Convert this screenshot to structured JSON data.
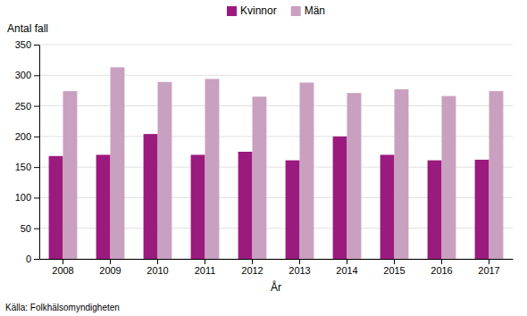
{
  "chart_data": {
    "type": "bar",
    "xlabel": "År",
    "ylabel": "Antal fall",
    "annotations": [
      "Källa: Folkhälsomyndigheten"
    ],
    "categories": [
      "2008",
      "2009",
      "2010",
      "2011",
      "2012",
      "2013",
      "2014",
      "2015",
      "2016",
      "2017"
    ],
    "series": [
      {
        "name": "Kvinnor",
        "color": "#9b1a7e",
        "values": [
          168,
          170,
          204,
          170,
          175,
          161,
          200,
          170,
          161,
          162
        ]
      },
      {
        "name": "Män",
        "color": "#c9a0c0",
        "values": [
          274,
          313,
          289,
          294,
          265,
          288,
          271,
          277,
          266,
          274
        ]
      }
    ],
    "ylim": [
      0,
      350
    ],
    "yticks": [
      0,
      50,
      100,
      150,
      200,
      250,
      300,
      350
    ],
    "grid": true,
    "legend": "top"
  }
}
